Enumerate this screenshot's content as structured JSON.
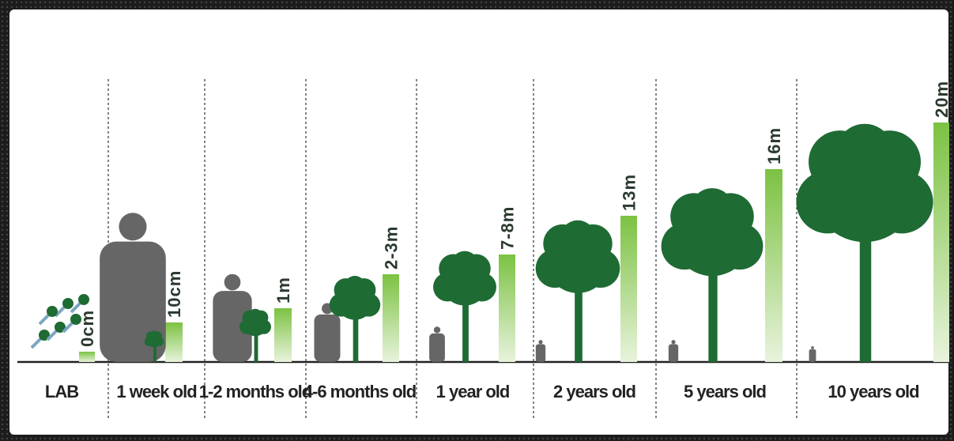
{
  "stages": [
    {
      "label": "LAB",
      "height": "0cm"
    },
    {
      "label": "1 week old",
      "height": "10cm"
    },
    {
      "label": "1-2 months old",
      "height": "1m"
    },
    {
      "label": "4-6 months old",
      "height": "2-3m"
    },
    {
      "label": "1 year old",
      "height": "7-8m"
    },
    {
      "label": "2 years old",
      "height": "13m"
    },
    {
      "label": "5 years old",
      "height": "16m"
    },
    {
      "label": "10 years old",
      "height": "20m"
    }
  ]
}
